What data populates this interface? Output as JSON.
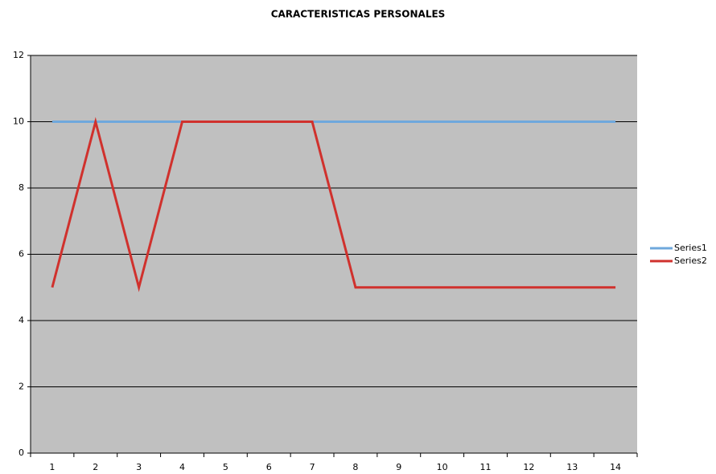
{
  "chart_data": {
    "type": "line",
    "title": "CARACTERISTICAS PERSONALES",
    "categories": [
      "1",
      "2",
      "3",
      "4",
      "5",
      "6",
      "7",
      "8",
      "9",
      "10",
      "11",
      "12",
      "13",
      "14"
    ],
    "series": [
      {
        "name": "Series1",
        "color": "#6fa8dc",
        "values": [
          10,
          10,
          10,
          10,
          10,
          10,
          10,
          10,
          10,
          10,
          10,
          10,
          10,
          10
        ]
      },
      {
        "name": "Series2",
        "color": "#d0312d",
        "values": [
          5,
          10,
          5,
          10,
          10,
          10,
          10,
          5,
          5,
          5,
          5,
          5,
          5,
          5
        ]
      }
    ],
    "ylim": [
      0,
      12
    ],
    "yticks": [
      0,
      2,
      4,
      6,
      8,
      10,
      12
    ],
    "grid": true,
    "legend": "right"
  }
}
